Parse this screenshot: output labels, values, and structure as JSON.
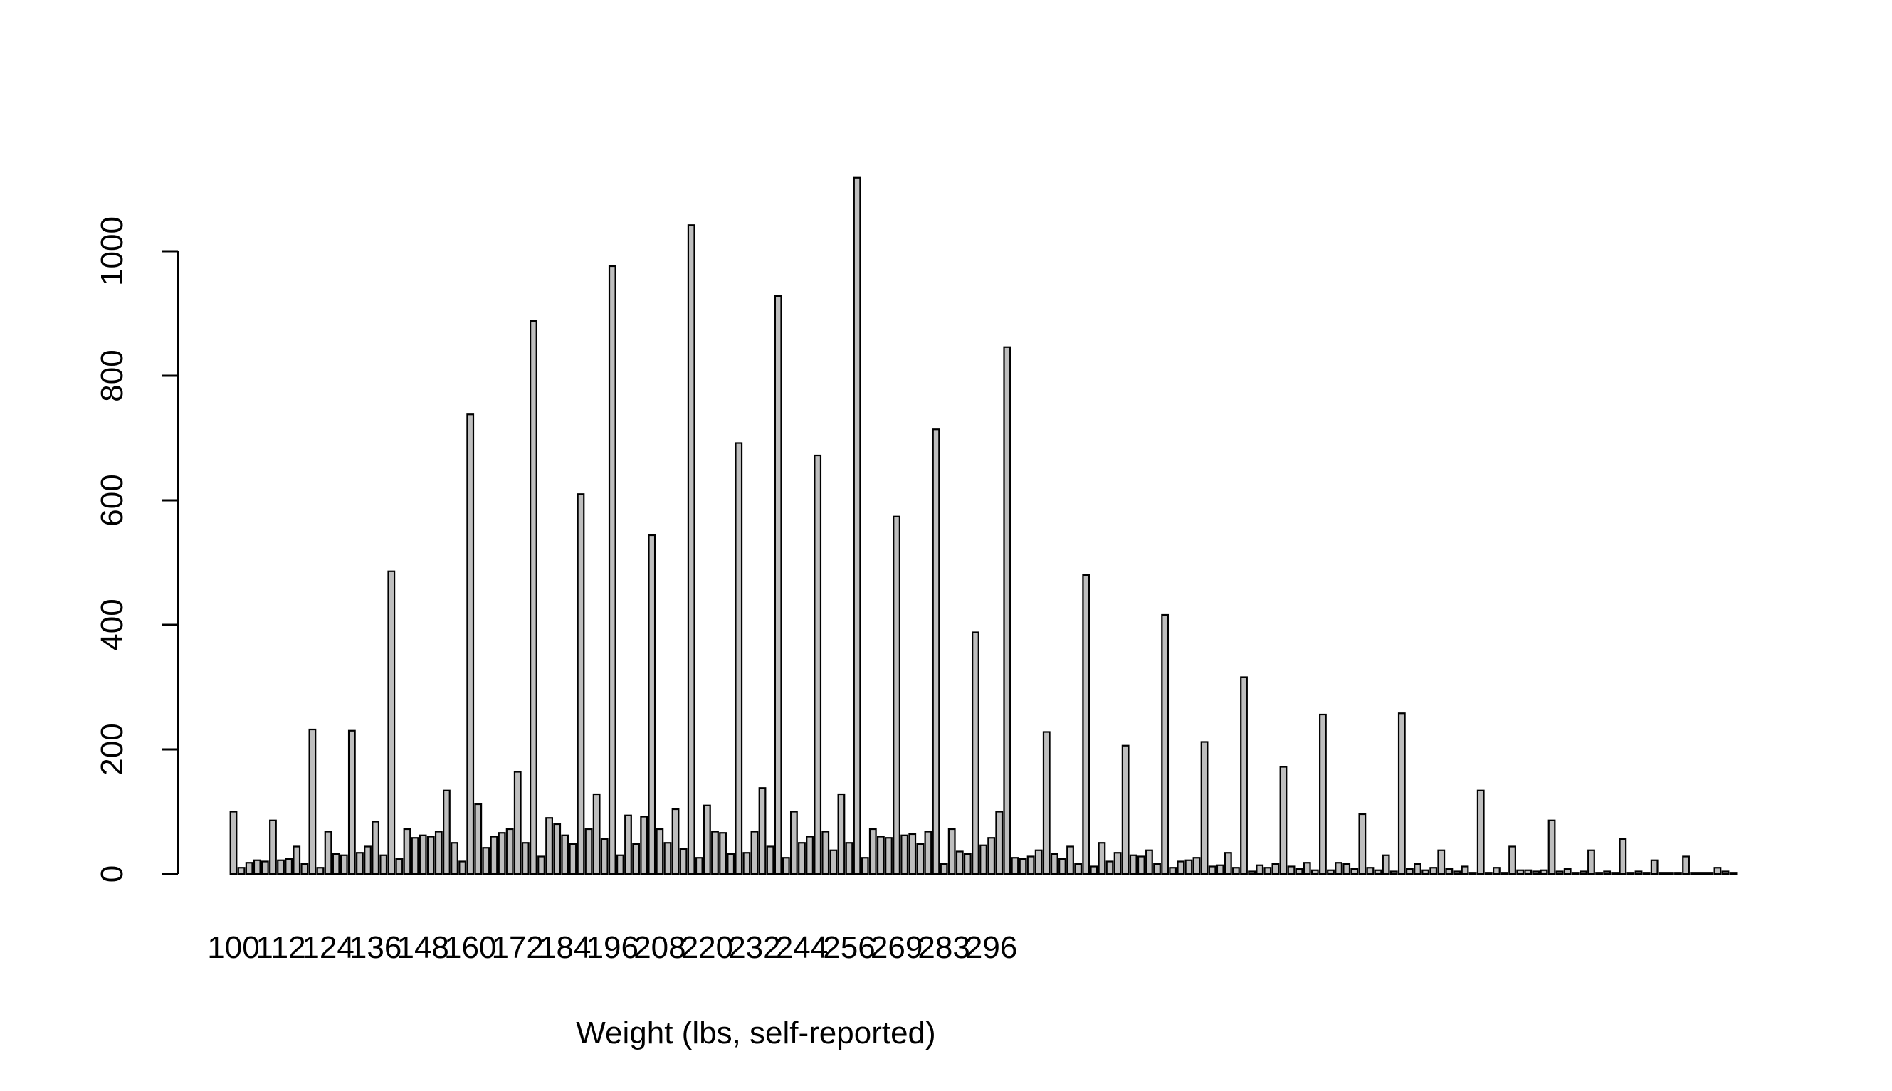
{
  "chart_data": {
    "type": "bar",
    "title": "",
    "xlabel": "Weight (lbs, self-reported)",
    "ylabel": "",
    "ylim": [
      0,
      1120
    ],
    "yticks": [
      0,
      200,
      400,
      600,
      800,
      1000
    ],
    "xtick_labels": [
      "100",
      "112",
      "124",
      "136",
      "148",
      "160",
      "172",
      "184",
      "196",
      "208",
      "220",
      "232",
      "244",
      "256",
      "269",
      "283",
      "296"
    ],
    "xtick_category_index": [
      0,
      6,
      12,
      18,
      24,
      30,
      36,
      42,
      48,
      54,
      60,
      66,
      72,
      78,
      84,
      90,
      96
    ],
    "bar_fill": "#bebebe",
    "bar_stroke": "#000000",
    "values": [
      100,
      10,
      18,
      22,
      20,
      86,
      22,
      24,
      44,
      16,
      232,
      10,
      68,
      32,
      30,
      230,
      34,
      44,
      84,
      30,
      486,
      24,
      72,
      58,
      62,
      60,
      68,
      134,
      50,
      20,
      738,
      112,
      42,
      60,
      66,
      72,
      164,
      50,
      888,
      28,
      90,
      80,
      62,
      48,
      610,
      72,
      128,
      56,
      976,
      30,
      94,
      48,
      92,
      544,
      72,
      50,
      104,
      40,
      1042,
      26,
      110,
      68,
      66,
      32,
      692,
      34,
      68,
      138,
      44,
      928,
      26,
      100,
      50,
      60,
      672,
      68,
      38,
      128,
      50,
      1118,
      26,
      72,
      60,
      58,
      574,
      62,
      64,
      48,
      68,
      714,
      16,
      72,
      36,
      32,
      388,
      46,
      58,
      100,
      846,
      26,
      24,
      28,
      38,
      228,
      32,
      24,
      44,
      16,
      480,
      12,
      50,
      20,
      34,
      206,
      30,
      28,
      38,
      16,
      416,
      10,
      20,
      22,
      26,
      212,
      12,
      14,
      34,
      10,
      316,
      4,
      14,
      10,
      16,
      172,
      12,
      8,
      18,
      6,
      256,
      6,
      18,
      16,
      8,
      96,
      10,
      6,
      30,
      4,
      258,
      8,
      16,
      6,
      10,
      38,
      8,
      4,
      12,
      2,
      134,
      2,
      10,
      2,
      44,
      6,
      6,
      4,
      6,
      86,
      4,
      8,
      2,
      4,
      38,
      2,
      4,
      2,
      56,
      2,
      4,
      2,
      22,
      2,
      2,
      2,
      28,
      2,
      2,
      2,
      10,
      4,
      2
    ]
  }
}
